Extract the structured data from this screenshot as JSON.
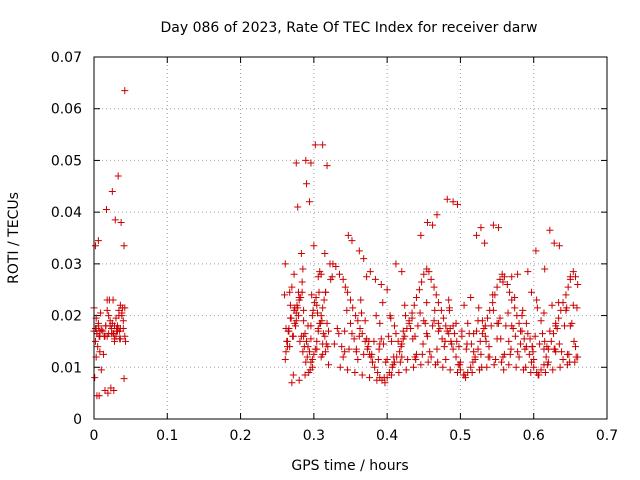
{
  "chart_data": {
    "type": "scatter",
    "title": "Day 086 of 2023, Rate Of TEC Index for receiver darw",
    "xlabel": "GPS time / hours",
    "ylabel": "ROTI / TECUs",
    "xlim": [
      0,
      0.7
    ],
    "ylim": [
      0,
      0.07
    ],
    "xticks": [
      "0",
      "0.1",
      "0.2",
      "0.3",
      "0.4",
      "0.5",
      "0.6",
      "0.7"
    ],
    "yticks": [
      "0",
      "0.01",
      "0.02",
      "0.03",
      "0.04",
      "0.05",
      "0.06",
      "0.07"
    ],
    "xtick_values": [
      0,
      0.1,
      0.2,
      0.3,
      0.4,
      0.5,
      0.6,
      0.7
    ],
    "ytick_values": [
      0,
      0.01,
      0.02,
      0.03,
      0.04,
      0.05,
      0.06,
      0.07
    ],
    "grid": true,
    "marker": "plus",
    "marker_color": "#cc0000",
    "series": [
      {
        "x": [
          0.0,
          0.002,
          0.004,
          0.006,
          0.008,
          0.01,
          0.0,
          0.003,
          0.006,
          0.009,
          0.002,
          0.005,
          0.008,
          0.001,
          0.004,
          0.007,
          0.01,
          0.002,
          0.006,
          0.003,
          0.012,
          0.014,
          0.016,
          0.018,
          0.02,
          0.022,
          0.024,
          0.026,
          0.028,
          0.03,
          0.032,
          0.034,
          0.036,
          0.038,
          0.04,
          0.042,
          0.013,
          0.017,
          0.021,
          0.025,
          0.029,
          0.033,
          0.037,
          0.041,
          0.015,
          0.019,
          0.023,
          0.027,
          0.031,
          0.035,
          0.039,
          0.016,
          0.024,
          0.032,
          0.04,
          0.018,
          0.026,
          0.034,
          0.042,
          0.02,
          0.028,
          0.036,
          0.015,
          0.025,
          0.035,
          0.003,
          0.007,
          0.022,
          0.03,
          0.038,
          0.043,
          0.036,
          0.033,
          0.018,
          0.028,
          0.008,
          0.004,
          0.041,
          0.027,
          0.031,
          0.26,
          0.262,
          0.264,
          0.266,
          0.268,
          0.27,
          0.272,
          0.274,
          0.276,
          0.278,
          0.28,
          0.282,
          0.284,
          0.286,
          0.288,
          0.29,
          0.292,
          0.294,
          0.296,
          0.298,
          0.3,
          0.302,
          0.304,
          0.306,
          0.308,
          0.31,
          0.312,
          0.314,
          0.316,
          0.318,
          0.32,
          0.263,
          0.267,
          0.271,
          0.275,
          0.279,
          0.283,
          0.287,
          0.291,
          0.295,
          0.299,
          0.303,
          0.307,
          0.311,
          0.315,
          0.319,
          0.261,
          0.265,
          0.269,
          0.273,
          0.277,
          0.281,
          0.285,
          0.289,
          0.293,
          0.297,
          0.301,
          0.305,
          0.309,
          0.313,
          0.317,
          0.262,
          0.268,
          0.274,
          0.28,
          0.286,
          0.292,
          0.298,
          0.304,
          0.31,
          0.316,
          0.264,
          0.272,
          0.28,
          0.288,
          0.296,
          0.304,
          0.312,
          0.32,
          0.266,
          0.276,
          0.286,
          0.296,
          0.306,
          0.316,
          0.27,
          0.284,
          0.298,
          0.312,
          0.278,
          0.294,
          0.31,
          0.285,
          0.3,
          0.261,
          0.267,
          0.273,
          0.279,
          0.289,
          0.302,
          0.312,
          0.29,
          0.276,
          0.296,
          0.318,
          0.306,
          0.283,
          0.315,
          0.322,
          0.308,
          0.323,
          0.325,
          0.326,
          0.33,
          0.335,
          0.34,
          0.343,
          0.346,
          0.35,
          0.353,
          0.357,
          0.36,
          0.363,
          0.366,
          0.37,
          0.373,
          0.376,
          0.38,
          0.383,
          0.387,
          0.39,
          0.393,
          0.397,
          0.4,
          0.403,
          0.407,
          0.41,
          0.413,
          0.417,
          0.42,
          0.424,
          0.427,
          0.43,
          0.434,
          0.437,
          0.44,
          0.444,
          0.447,
          0.45,
          0.454,
          0.457,
          0.46,
          0.464,
          0.467,
          0.47,
          0.474,
          0.477,
          0.48,
          0.484,
          0.487,
          0.49,
          0.494,
          0.497,
          0.5,
          0.504,
          0.507,
          0.51,
          0.514,
          0.517,
          0.52,
          0.524,
          0.527,
          0.53,
          0.534,
          0.537,
          0.54,
          0.544,
          0.547,
          0.55,
          0.554,
          0.557,
          0.56,
          0.564,
          0.567,
          0.57,
          0.574,
          0.577,
          0.58,
          0.584,
          0.587,
          0.59,
          0.594,
          0.597,
          0.6,
          0.604,
          0.607,
          0.61,
          0.614,
          0.617,
          0.62,
          0.624,
          0.627,
          0.63,
          0.634,
          0.637,
          0.64,
          0.644,
          0.647,
          0.65,
          0.654,
          0.657,
          0.66,
          0.328,
          0.338,
          0.348,
          0.358,
          0.368,
          0.378,
          0.388,
          0.398,
          0.408,
          0.418,
          0.428,
          0.438,
          0.448,
          0.458,
          0.468,
          0.478,
          0.488,
          0.498,
          0.508,
          0.518,
          0.528,
          0.538,
          0.548,
          0.558,
          0.568,
          0.578,
          0.588,
          0.598,
          0.608,
          0.618,
          0.628,
          0.638,
          0.648,
          0.658,
          0.332,
          0.342,
          0.352,
          0.362,
          0.372,
          0.382,
          0.392,
          0.402,
          0.412,
          0.422,
          0.432,
          0.442,
          0.452,
          0.462,
          0.472,
          0.482,
          0.492,
          0.502,
          0.512,
          0.522,
          0.532,
          0.542,
          0.552,
          0.562,
          0.572,
          0.582,
          0.592,
          0.602,
          0.612,
          0.622,
          0.632,
          0.642,
          0.652,
          0.336,
          0.346,
          0.356,
          0.366,
          0.376,
          0.386,
          0.396,
          0.406,
          0.416,
          0.426,
          0.436,
          0.446,
          0.456,
          0.466,
          0.476,
          0.486,
          0.496,
          0.506,
          0.516,
          0.526,
          0.536,
          0.546,
          0.556,
          0.566,
          0.576,
          0.586,
          0.596,
          0.606,
          0.616,
          0.626,
          0.636,
          0.646,
          0.656,
          0.345,
          0.365,
          0.385,
          0.405,
          0.425,
          0.445,
          0.465,
          0.485,
          0.505,
          0.525,
          0.545,
          0.565,
          0.585,
          0.605,
          0.625,
          0.645,
          0.355,
          0.375,
          0.395,
          0.415,
          0.435,
          0.455,
          0.475,
          0.495,
          0.515,
          0.535,
          0.555,
          0.575,
          0.595,
          0.615,
          0.635,
          0.655,
          0.34,
          0.36,
          0.38,
          0.4,
          0.42,
          0.44,
          0.46,
          0.48,
          0.5,
          0.52,
          0.54,
          0.56,
          0.58,
          0.6,
          0.62,
          0.64,
          0.66,
          0.35,
          0.37,
          0.39,
          0.41,
          0.43,
          0.45,
          0.47,
          0.49,
          0.51,
          0.53,
          0.55,
          0.57,
          0.59,
          0.61,
          0.63,
          0.65,
          0.347,
          0.352,
          0.362,
          0.368,
          0.372,
          0.377,
          0.384,
          0.392,
          0.4,
          0.412,
          0.42,
          0.446,
          0.455,
          0.462,
          0.468,
          0.482,
          0.485,
          0.49,
          0.496,
          0.522,
          0.528,
          0.533,
          0.545,
          0.552,
          0.558,
          0.57,
          0.578,
          0.592,
          0.597,
          0.603,
          0.615,
          0.622,
          0.628,
          0.635,
          0.65,
          0.342,
          0.358,
          0.374,
          0.39,
          0.406,
          0.422,
          0.438,
          0.454,
          0.47,
          0.486,
          0.502,
          0.518,
          0.534,
          0.55,
          0.566,
          0.582,
          0.598,
          0.614,
          0.63,
          0.646,
          0.364,
          0.394,
          0.424,
          0.454,
          0.484,
          0.514,
          0.544,
          0.574,
          0.604,
          0.634,
          0.654,
          0.379,
          0.409,
          0.439,
          0.469,
          0.499,
          0.529,
          0.559,
          0.589,
          0.619,
          0.649,
          0.334,
          0.404,
          0.434,
          0.464,
          0.494,
          0.524,
          0.554,
          0.584,
          0.614,
          0.644,
          0.659,
          0.389,
          0.419,
          0.449,
          0.479,
          0.509,
          0.539,
          0.569,
          0.599,
          0.629,
          0.657
        ],
        "y": [
          0.017,
          0.0175,
          0.0165,
          0.018,
          0.016,
          0.0172,
          0.0215,
          0.0195,
          0.0185,
          0.0205,
          0.015,
          0.014,
          0.013,
          0.008,
          0.0045,
          0.0045,
          0.0095,
          0.0335,
          0.0345,
          0.012,
          0.017,
          0.016,
          0.018,
          0.023,
          0.02,
          0.019,
          0.0175,
          0.0165,
          0.0155,
          0.016,
          0.017,
          0.021,
          0.022,
          0.02,
          0.019,
          0.016,
          0.0125,
          0.0405,
          0.023,
          0.044,
          0.0385,
          0.047,
          0.038,
          0.0335,
          0.0055,
          0.005,
          0.006,
          0.0055,
          0.0175,
          0.0155,
          0.0215,
          0.018,
          0.0165,
          0.018,
          0.0175,
          0.021,
          0.023,
          0.02,
          0.0215,
          0.0165,
          0.015,
          0.0155,
          0.016,
          0.0185,
          0.017,
          0.0175,
          0.016,
          0.018,
          0.0195,
          0.0205,
          0.015,
          0.0175,
          0.0175,
          0.016,
          0.018,
          0.017,
          0.0165,
          0.0078,
          0.0165,
          0.017,
          0.024,
          0.013,
          0.015,
          0.0175,
          0.022,
          0.007,
          0.0085,
          0.0185,
          0.0205,
          0.0215,
          0.023,
          0.0235,
          0.0245,
          0.019,
          0.0165,
          0.015,
          0.014,
          0.013,
          0.011,
          0.01,
          0.0125,
          0.0135,
          0.015,
          0.017,
          0.0185,
          0.02,
          0.0215,
          0.023,
          0.0245,
          0.0185,
          0.017,
          0.015,
          0.014,
          0.016,
          0.018,
          0.02,
          0.016,
          0.014,
          0.012,
          0.0095,
          0.021,
          0.0235,
          0.0245,
          0.019,
          0.016,
          0.014,
          0.0115,
          0.017,
          0.0195,
          0.021,
          0.022,
          0.015,
          0.013,
          0.011,
          0.009,
          0.024,
          0.0225,
          0.0205,
          0.0185,
          0.0165,
          0.0145,
          0.0175,
          0.0195,
          0.0215,
          0.0235,
          0.016,
          0.018,
          0.02,
          0.022,
          0.012,
          0.013,
          0.014,
          0.016,
          0.0075,
          0.0085,
          0.018,
          0.0135,
          0.0145,
          0.0105,
          0.017,
          0.019,
          0.021,
          0.0155,
          0.0175,
          0.0245,
          0.0255,
          0.0265,
          0.0115,
          0.0125,
          0.041,
          0.042,
          0.028,
          0.029,
          0.0335,
          0.03,
          0.0245,
          0.028,
          0.0245,
          0.05,
          0.053,
          0.053,
          0.0455,
          0.0495,
          0.0495,
          0.049,
          0.0275,
          0.032,
          0.032,
          0.03,
          0.0285,
          0.027,
          0.0275,
          0.03,
          0.0295,
          0.028,
          0.027,
          0.0255,
          0.0245,
          0.023,
          0.0215,
          0.02,
          0.019,
          0.0175,
          0.0165,
          0.015,
          0.0135,
          0.0125,
          0.011,
          0.01,
          0.009,
          0.008,
          0.0075,
          0.007,
          0.008,
          0.009,
          0.01,
          0.011,
          0.012,
          0.013,
          0.0145,
          0.016,
          0.0175,
          0.019,
          0.0205,
          0.022,
          0.0235,
          0.025,
          0.0265,
          0.028,
          0.029,
          0.0285,
          0.027,
          0.0255,
          0.024,
          0.0225,
          0.021,
          0.0195,
          0.018,
          0.0165,
          0.015,
          0.0135,
          0.012,
          0.0105,
          0.0095,
          0.0085,
          0.008,
          0.009,
          0.01,
          0.011,
          0.012,
          0.0135,
          0.015,
          0.0165,
          0.018,
          0.0195,
          0.021,
          0.0225,
          0.024,
          0.0255,
          0.027,
          0.028,
          0.0275,
          0.026,
          0.0245,
          0.023,
          0.0215,
          0.02,
          0.0185,
          0.017,
          0.0155,
          0.014,
          0.0125,
          0.011,
          0.01,
          0.009,
          0.0085,
          0.0095,
          0.0105,
          0.012,
          0.0135,
          0.015,
          0.0165,
          0.018,
          0.0195,
          0.021,
          0.0225,
          0.024,
          0.0255,
          0.027,
          0.0285,
          0.0275,
          0.026,
          0.0145,
          0.014,
          0.0135,
          0.013,
          0.0125,
          0.012,
          0.0115,
          0.011,
          0.0105,
          0.011,
          0.0115,
          0.012,
          0.0125,
          0.013,
          0.0135,
          0.014,
          0.0145,
          0.014,
          0.0135,
          0.013,
          0.0125,
          0.012,
          0.0115,
          0.012,
          0.0125,
          0.013,
          0.0135,
          0.014,
          0.0145,
          0.014,
          0.0135,
          0.013,
          0.0125,
          0.012,
          0.0175,
          0.017,
          0.0165,
          0.016,
          0.0155,
          0.015,
          0.0155,
          0.016,
          0.0165,
          0.017,
          0.0175,
          0.018,
          0.0185,
          0.018,
          0.0175,
          0.017,
          0.0165,
          0.016,
          0.0165,
          0.017,
          0.0175,
          0.018,
          0.0185,
          0.018,
          0.0175,
          0.017,
          0.0165,
          0.016,
          0.0165,
          0.017,
          0.0175,
          0.018,
          0.0185,
          0.01,
          0.0095,
          0.009,
          0.0085,
          0.008,
          0.0075,
          0.008,
          0.0085,
          0.009,
          0.0095,
          0.01,
          0.0105,
          0.011,
          0.0105,
          0.01,
          0.0095,
          0.009,
          0.0085,
          0.009,
          0.0095,
          0.01,
          0.0105,
          0.011,
          0.0105,
          0.01,
          0.0095,
          0.009,
          0.0085,
          0.009,
          0.0095,
          0.01,
          0.0105,
          0.011,
          0.021,
          0.0205,
          0.02,
          0.0195,
          0.02,
          0.0205,
          0.021,
          0.0215,
          0.022,
          0.0215,
          0.021,
          0.0205,
          0.021,
          0.0215,
          0.022,
          0.0215,
          0.0155,
          0.015,
          0.0145,
          0.015,
          0.0155,
          0.016,
          0.0155,
          0.015,
          0.0145,
          0.015,
          0.0155,
          0.016,
          0.0155,
          0.015,
          0.0145,
          0.015,
          0.012,
          0.0115,
          0.011,
          0.0115,
          0.012,
          0.0125,
          0.012,
          0.0115,
          0.011,
          0.0115,
          0.012,
          0.0125,
          0.012,
          0.0115,
          0.011,
          0.0115,
          0.012,
          0.0185,
          0.019,
          0.0185,
          0.018,
          0.0185,
          0.019,
          0.0185,
          0.018,
          0.0185,
          0.019,
          0.0185,
          0.018,
          0.0185,
          0.019,
          0.0185,
          0.018,
          0.0355,
          0.0345,
          0.0325,
          0.031,
          0.0275,
          0.0285,
          0.027,
          0.026,
          0.025,
          0.03,
          0.0285,
          0.0355,
          0.038,
          0.0375,
          0.0395,
          0.0425,
          0.021,
          0.042,
          0.0415,
          0.0355,
          0.037,
          0.034,
          0.0375,
          0.037,
          0.0265,
          0.0275,
          0.028,
          0.0285,
          0.0245,
          0.0325,
          0.029,
          0.0365,
          0.034,
          0.0335,
          0.0275,
          0.013,
          0.0135,
          0.014,
          0.0145,
          0.015,
          0.0155,
          0.016,
          0.0165,
          0.017,
          0.0175,
          0.017,
          0.0165,
          0.016,
          0.0155,
          0.015,
          0.0145,
          0.014,
          0.0135,
          0.013,
          0.0125,
          0.023,
          0.0225,
          0.022,
          0.0225,
          0.023,
          0.0235,
          0.024,
          0.0235,
          0.023,
          0.0225,
          0.022,
          0.0125,
          0.012,
          0.0115,
          0.011,
          0.0105,
          0.01,
          0.0095,
          0.01,
          0.0105,
          0.011,
          0.0165,
          0.02,
          0.0195,
          0.019,
          0.0185,
          0.019,
          0.0195,
          0.02,
          0.0205,
          0.021,
          0.0215,
          0.0135,
          0.014,
          0.0145,
          0.015,
          0.0145,
          0.014,
          0.0135,
          0.013,
          0.0135,
          0.014
        ]
      },
      {
        "x": [
          0.042
        ],
        "y": [
          0.0635
        ]
      }
    ]
  }
}
